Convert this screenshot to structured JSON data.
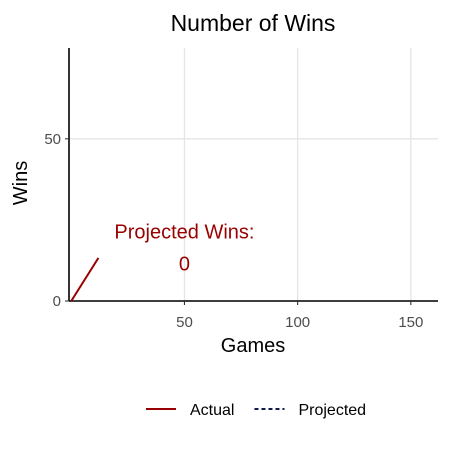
{
  "chart_data": {
    "type": "line",
    "title": "Number of Wins",
    "xlabel": "Games",
    "ylabel": "Wins",
    "xlim": [
      -1,
      162
    ],
    "ylim": [
      0,
      78
    ],
    "x_ticks": [
      50,
      100,
      150
    ],
    "y_ticks": [
      0,
      50
    ],
    "grid": true,
    "legend_position": "bottom",
    "series": [
      {
        "name": "Actual",
        "line_style": "solid",
        "color": "#990000",
        "x": [
          0,
          12
        ],
        "y": [
          0,
          13.3
        ]
      },
      {
        "name": "Projected",
        "line_style": "dashed",
        "color": "#0d1b4c",
        "x": [],
        "y": []
      }
    ],
    "annotation": {
      "label": "Projected Wins:",
      "value": "0",
      "color": "#990000",
      "x": 50,
      "label_y": 21.5,
      "value_y": 11.5
    }
  }
}
